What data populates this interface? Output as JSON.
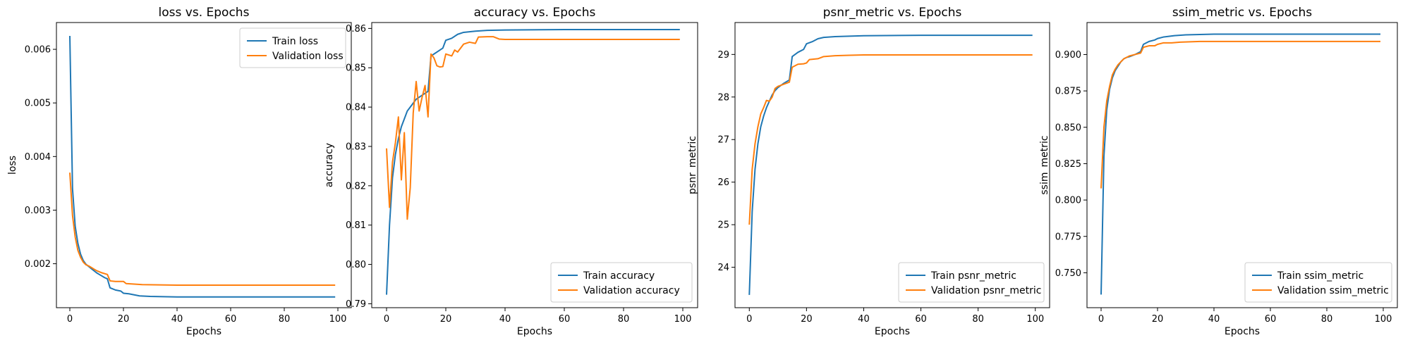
{
  "colors": {
    "train": "#1f77b4",
    "validation": "#ff7f0e"
  },
  "chart_data": [
    {
      "type": "line",
      "title": "loss vs. Epochs",
      "xlabel": "Epochs",
      "ylabel": "loss",
      "xlim": [
        -5,
        105
      ],
      "ylim": [
        0.00118,
        0.0065
      ],
      "xticks": [
        0,
        20,
        40,
        60,
        80,
        100
      ],
      "yticks": [
        0.002,
        0.003,
        0.004,
        0.005,
        0.006
      ],
      "ytick_labels": [
        "0.002",
        "0.003",
        "0.004",
        "0.005",
        "0.006"
      ],
      "legend": "top-right",
      "series": [
        {
          "name": "Train loss",
          "color": "#1f77b4",
          "points": [
            [
              0,
              0.00625
            ],
            [
              1,
              0.0034
            ],
            [
              2,
              0.0027
            ],
            [
              3,
              0.00238
            ],
            [
              4,
              0.00218
            ],
            [
              5,
              0.00206
            ],
            [
              6,
              0.00199
            ],
            [
              7,
              0.00195
            ],
            [
              8,
              0.00191
            ],
            [
              9,
              0.00187
            ],
            [
              10,
              0.00183
            ],
            [
              11,
              0.0018
            ],
            [
              12,
              0.00177
            ],
            [
              13,
              0.00174
            ],
            [
              14,
              0.00172
            ],
            [
              15,
              0.00155
            ],
            [
              16,
              0.00153
            ],
            [
              17,
              0.00151
            ],
            [
              18,
              0.0015
            ],
            [
              19,
              0.00149
            ],
            [
              20,
              0.00145
            ],
            [
              22,
              0.00144
            ],
            [
              24,
              0.00142
            ],
            [
              26,
              0.0014
            ],
            [
              30,
              0.00139
            ],
            [
              40,
              0.00138
            ],
            [
              60,
              0.00138
            ],
            [
              80,
              0.00138
            ],
            [
              99,
              0.00138
            ]
          ]
        },
        {
          "name": "Validation loss",
          "color": "#ff7f0e",
          "points": [
            [
              0,
              0.0037
            ],
            [
              1,
              0.0029
            ],
            [
              2,
              0.0025
            ],
            [
              3,
              0.00225
            ],
            [
              4,
              0.00212
            ],
            [
              5,
              0.00203
            ],
            [
              6,
              0.00198
            ],
            [
              7,
              0.00196
            ],
            [
              8,
              0.00193
            ],
            [
              9,
              0.0019
            ],
            [
              10,
              0.00187
            ],
            [
              12,
              0.00183
            ],
            [
              14,
              0.0018
            ],
            [
              15,
              0.00168
            ],
            [
              17,
              0.00167
            ],
            [
              20,
              0.00167
            ],
            [
              21,
              0.00163
            ],
            [
              24,
              0.00162
            ],
            [
              27,
              0.00161
            ],
            [
              40,
              0.0016
            ],
            [
              60,
              0.0016
            ],
            [
              99,
              0.0016
            ]
          ]
        }
      ]
    },
    {
      "type": "line",
      "title": "accuracy vs. Epochs",
      "xlabel": "Epochs",
      "ylabel": "accuracy",
      "xlim": [
        -5,
        105
      ],
      "ylim": [
        0.789,
        0.8615
      ],
      "xticks": [
        0,
        20,
        40,
        60,
        80,
        100
      ],
      "yticks": [
        0.79,
        0.8,
        0.81,
        0.82,
        0.83,
        0.84,
        0.85,
        0.86
      ],
      "ytick_labels": [
        "0.79",
        "0.80",
        "0.81",
        "0.82",
        "0.83",
        "0.84",
        "0.85",
        "0.86"
      ],
      "legend": "bottom-right",
      "series": [
        {
          "name": "Train accuracy",
          "color": "#1f77b4",
          "points": [
            [
              0,
              0.7923
            ],
            [
              1,
              0.81
            ],
            [
              2,
              0.822
            ],
            [
              3,
              0.828
            ],
            [
              4,
              0.832
            ],
            [
              5,
              0.835
            ],
            [
              6,
              0.837
            ],
            [
              7,
              0.839
            ],
            [
              8,
              0.84
            ],
            [
              9,
              0.841
            ],
            [
              10,
              0.842
            ],
            [
              12,
              0.843
            ],
            [
              14,
              0.844
            ],
            [
              15,
              0.853
            ],
            [
              17,
              0.854
            ],
            [
              19,
              0.855
            ],
            [
              20,
              0.857
            ],
            [
              22,
              0.8575
            ],
            [
              24,
              0.8585
            ],
            [
              26,
              0.859
            ],
            [
              30,
              0.8593
            ],
            [
              34,
              0.8595
            ],
            [
              40,
              0.8596
            ],
            [
              60,
              0.8597
            ],
            [
              80,
              0.8597
            ],
            [
              99,
              0.8597
            ]
          ]
        },
        {
          "name": "Validation accuracy",
          "color": "#ff7f0e",
          "points": [
            [
              0,
              0.8295
            ],
            [
              1,
              0.8145
            ],
            [
              2,
              0.826
            ],
            [
              3,
              0.831
            ],
            [
              4,
              0.8375
            ],
            [
              5,
              0.8215
            ],
            [
              6,
              0.8335
            ],
            [
              7,
              0.8115
            ],
            [
              8,
              0.8195
            ],
            [
              9,
              0.8385
            ],
            [
              10,
              0.8465
            ],
            [
              11,
              0.839
            ],
            [
              12,
              0.8425
            ],
            [
              13,
              0.8455
            ],
            [
              14,
              0.8375
            ],
            [
              15,
              0.8535
            ],
            [
              16,
              0.8525
            ],
            [
              17,
              0.8505
            ],
            [
              18,
              0.8502
            ],
            [
              19,
              0.8503
            ],
            [
              20,
              0.8535
            ],
            [
              22,
              0.853
            ],
            [
              23,
              0.8545
            ],
            [
              24,
              0.854
            ],
            [
              26,
              0.856
            ],
            [
              28,
              0.8565
            ],
            [
              30,
              0.8562
            ],
            [
              31,
              0.8578
            ],
            [
              34,
              0.8579
            ],
            [
              36,
              0.8579
            ],
            [
              38,
              0.8573
            ],
            [
              40,
              0.8572
            ],
            [
              42,
              0.8572
            ],
            [
              50,
              0.8572
            ],
            [
              60,
              0.8572
            ],
            [
              80,
              0.8572
            ],
            [
              99,
              0.8572
            ]
          ]
        }
      ]
    },
    {
      "type": "line",
      "title": "psnr_metric vs. Epochs",
      "xlabel": "Epochs",
      "ylabel": "psnr_metric",
      "xlim": [
        -5,
        105
      ],
      "ylim": [
        23.05,
        29.75
      ],
      "xticks": [
        0,
        20,
        40,
        60,
        80,
        100
      ],
      "yticks": [
        24,
        25,
        26,
        27,
        28,
        29
      ],
      "ytick_labels": [
        "24",
        "25",
        "26",
        "27",
        "28",
        "29"
      ],
      "legend": "bottom-right",
      "series": [
        {
          "name": "Train psnr_metric",
          "color": "#1f77b4",
          "points": [
            [
              0,
              23.35
            ],
            [
              1,
              25.3
            ],
            [
              2,
              26.3
            ],
            [
              3,
              26.9
            ],
            [
              4,
              27.3
            ],
            [
              5,
              27.55
            ],
            [
              6,
              27.75
            ],
            [
              7,
              27.9
            ],
            [
              8,
              28.05
            ],
            [
              9,
              28.15
            ],
            [
              10,
              28.22
            ],
            [
              12,
              28.32
            ],
            [
              14,
              28.4
            ],
            [
              15,
              28.95
            ],
            [
              17,
              29.05
            ],
            [
              19,
              29.12
            ],
            [
              20,
              29.25
            ],
            [
              22,
              29.3
            ],
            [
              24,
              29.37
            ],
            [
              26,
              29.4
            ],
            [
              30,
              29.42
            ],
            [
              35,
              29.43
            ],
            [
              40,
              29.44
            ],
            [
              60,
              29.45
            ],
            [
              80,
              29.45
            ],
            [
              99,
              29.45
            ]
          ]
        },
        {
          "name": "Validation psnr_metric",
          "color": "#ff7f0e",
          "points": [
            [
              0,
              25.0
            ],
            [
              1,
              26.3
            ],
            [
              2,
              26.9
            ],
            [
              3,
              27.3
            ],
            [
              4,
              27.6
            ],
            [
              5,
              27.75
            ],
            [
              6,
              27.92
            ],
            [
              7,
              27.9
            ],
            [
              8,
              28.0
            ],
            [
              9,
              28.2
            ],
            [
              10,
              28.25
            ],
            [
              12,
              28.3
            ],
            [
              14,
              28.35
            ],
            [
              15,
              28.7
            ],
            [
              17,
              28.77
            ],
            [
              19,
              28.78
            ],
            [
              20,
              28.8
            ],
            [
              21,
              28.88
            ],
            [
              24,
              28.9
            ],
            [
              26,
              28.95
            ],
            [
              30,
              28.97
            ],
            [
              35,
              28.98
            ],
            [
              40,
              28.99
            ],
            [
              60,
              28.99
            ],
            [
              80,
              28.99
            ],
            [
              99,
              28.99
            ]
          ]
        }
      ]
    },
    {
      "type": "line",
      "title": "ssim_metric vs. Epochs",
      "xlabel": "Epochs",
      "ylabel": "ssim_metric",
      "xlim": [
        -5,
        105
      ],
      "ylim": [
        0.726,
        0.922
      ],
      "xticks": [
        0,
        20,
        40,
        60,
        80,
        100
      ],
      "yticks": [
        0.75,
        0.775,
        0.8,
        0.825,
        0.85,
        0.875,
        0.9
      ],
      "ytick_labels": [
        "0.750",
        "0.775",
        "0.800",
        "0.825",
        "0.850",
        "0.875",
        "0.900"
      ],
      "legend": "bottom-right",
      "series": [
        {
          "name": "Train ssim_metric",
          "color": "#1f77b4",
          "points": [
            [
              0,
              0.735
            ],
            [
              1,
              0.83
            ],
            [
              2,
              0.862
            ],
            [
              3,
              0.876
            ],
            [
              4,
              0.884
            ],
            [
              5,
              0.889
            ],
            [
              6,
              0.892
            ],
            [
              7,
              0.895
            ],
            [
              8,
              0.897
            ],
            [
              9,
              0.898
            ],
            [
              10,
              0.8985
            ],
            [
              12,
              0.9
            ],
            [
              14,
              0.902
            ],
            [
              15,
              0.907
            ],
            [
              17,
              0.909
            ],
            [
              19,
              0.91
            ],
            [
              20,
              0.911
            ],
            [
              22,
              0.912
            ],
            [
              24,
              0.9125
            ],
            [
              26,
              0.913
            ],
            [
              30,
              0.9135
            ],
            [
              40,
              0.914
            ],
            [
              60,
              0.914
            ],
            [
              80,
              0.914
            ],
            [
              99,
              0.914
            ]
          ]
        },
        {
          "name": "Validation ssim_metric",
          "color": "#ff7f0e",
          "points": [
            [
              0,
              0.808
            ],
            [
              1,
              0.85
            ],
            [
              2,
              0.868
            ],
            [
              3,
              0.878
            ],
            [
              4,
              0.886
            ],
            [
              5,
              0.89
            ],
            [
              6,
              0.893
            ],
            [
              7,
              0.895
            ],
            [
              8,
              0.897
            ],
            [
              9,
              0.898
            ],
            [
              10,
              0.899
            ],
            [
              12,
              0.9
            ],
            [
              14,
              0.901
            ],
            [
              15,
              0.905
            ],
            [
              17,
              0.906
            ],
            [
              19,
              0.906
            ],
            [
              20,
              0.907
            ],
            [
              22,
              0.908
            ],
            [
              25,
              0.908
            ],
            [
              28,
              0.9085
            ],
            [
              35,
              0.909
            ],
            [
              40,
              0.909
            ],
            [
              60,
              0.909
            ],
            [
              80,
              0.909
            ],
            [
              99,
              0.909
            ]
          ]
        }
      ]
    }
  ]
}
